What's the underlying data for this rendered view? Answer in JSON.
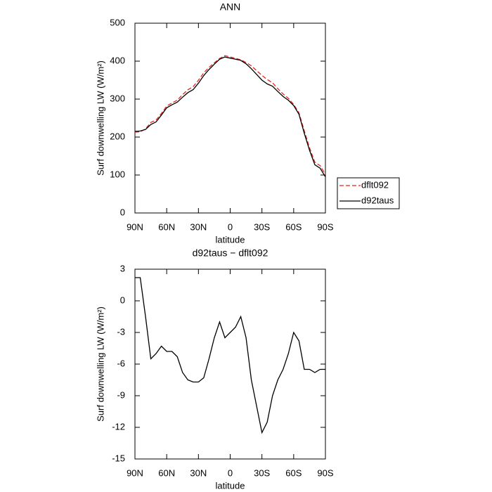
{
  "chart_data": [
    {
      "type": "line",
      "title": "ANN",
      "x_label": "latitude",
      "y_label": "Surf downwelling LW (W/m²)",
      "x": [
        90,
        85,
        80,
        75,
        70,
        65,
        60,
        55,
        50,
        45,
        40,
        35,
        30,
        25,
        20,
        15,
        10,
        5,
        0,
        -5,
        -10,
        -15,
        -20,
        -25,
        -30,
        -35,
        -40,
        -45,
        -50,
        -55,
        -60,
        -65,
        -70,
        -75,
        -80,
        -85,
        -90
      ],
      "xlim": [
        90,
        -90
      ],
      "xticks": [
        {
          "value": 90,
          "label": "90N"
        },
        {
          "value": 60,
          "label": "60N"
        },
        {
          "value": 30,
          "label": "30N"
        },
        0,
        {
          "value": -30,
          "label": "30S"
        },
        {
          "value": -60,
          "label": "60S"
        },
        {
          "value": -90,
          "label": "90S"
        }
      ],
      "ylim": [
        0,
        500
      ],
      "yticks": [
        0,
        100,
        200,
        300,
        400,
        500
      ],
      "legend": "right",
      "series": [
        {
          "name": "dflt092",
          "color": "#e8251f",
          "line_style": "dashed",
          "values": [
            213,
            214,
            221.5,
            238.5,
            245,
            262.3,
            281.8,
            289.8,
            297.3,
            311.8,
            324.5,
            332.7,
            349.7,
            369.3,
            383.5,
            395.5,
            407,
            414.5,
            411,
            407.5,
            403.5,
            396.5,
            387.5,
            375,
            362.5,
            351.5,
            343,
            327.5,
            313.5,
            302,
            286,
            263.8,
            216.5,
            171.5,
            133.8,
            124.5,
            101.5
          ]
        },
        {
          "name": "d92taus",
          "color": "#000000",
          "line_style": "solid",
          "values": [
            215,
            216,
            220,
            233,
            240,
            258,
            277,
            285,
            292,
            305,
            317,
            325,
            342,
            362,
            378,
            392,
            405,
            411,
            408,
            405,
            402,
            393,
            380,
            365,
            350,
            340,
            334,
            320,
            307,
            297,
            283,
            260,
            210,
            165,
            127,
            118,
            95
          ]
        }
      ]
    },
    {
      "type": "line",
      "title": "d92taus − dflt092",
      "x_label": "latitude",
      "y_label": "Surf downwelling LW (W/m²)",
      "x": [
        90,
        85,
        80,
        75,
        70,
        65,
        60,
        55,
        50,
        45,
        40,
        35,
        30,
        25,
        20,
        15,
        10,
        5,
        0,
        -5,
        -10,
        -15,
        -20,
        -25,
        -30,
        -35,
        -40,
        -45,
        -50,
        -55,
        -60,
        -65,
        -70,
        -75,
        -80,
        -85,
        -90
      ],
      "xlim": [
        90,
        -90
      ],
      "xticks": [
        {
          "value": 90,
          "label": "90N"
        },
        {
          "value": 60,
          "label": "60N"
        },
        {
          "value": 30,
          "label": "30N"
        },
        0,
        {
          "value": -30,
          "label": "30S"
        },
        {
          "value": -60,
          "label": "60S"
        },
        {
          "value": -90,
          "label": "90S"
        }
      ],
      "ylim": [
        -15,
        3
      ],
      "yticks": [
        -15,
        -12,
        -9,
        -6,
        -3,
        0,
        3
      ],
      "series": [
        {
          "color": "#000000",
          "line_style": "solid",
          "values": [
            2.2,
            2.2,
            -1.5,
            -5.5,
            -5,
            -4.3,
            -4.8,
            -4.8,
            -5.3,
            -6.8,
            -7.5,
            -7.7,
            -7.7,
            -7.3,
            -5.5,
            -3.5,
            -2,
            -3.5,
            -3,
            -2.5,
            -1.5,
            -3.5,
            -7.5,
            -10,
            -12.5,
            -11.5,
            -9,
            -7.5,
            -6.5,
            -5,
            -3,
            -3.8,
            -6.5,
            -6.5,
            -6.8,
            -6.5,
            -6.5
          ]
        }
      ]
    }
  ]
}
